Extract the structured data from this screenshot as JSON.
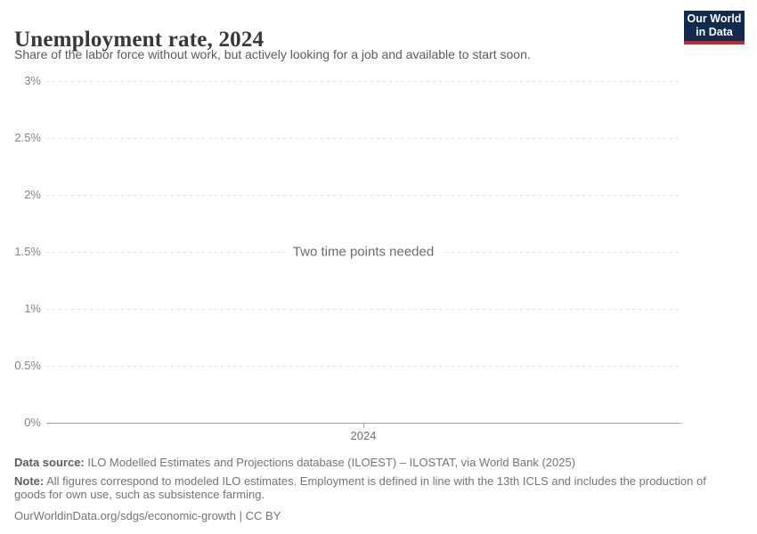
{
  "header": {
    "title": "Unemployment rate, 2024",
    "subtitle": "Share of the labor force without work, but actively looking for a job and available to start soon.",
    "logo": {
      "line1": "Our World",
      "line2": "in Data",
      "bg_color": "#112b4f",
      "accent_color": "#c2282f"
    }
  },
  "chart_data": {
    "type": "line",
    "title": "Unemployment rate, 2024",
    "series": [],
    "x": [],
    "message": "Two time points needed",
    "xticks": [
      "2024"
    ],
    "yticks": [
      "0%",
      "0.5%",
      "1%",
      "1.5%",
      "2%",
      "2.5%",
      "3%"
    ],
    "ylim": [
      0,
      3
    ],
    "xlabel": "",
    "ylabel": "",
    "legend": "none",
    "grid": "horizontal-dashed",
    "grid_color": "#e1e1e1",
    "axis_color": "#a5a5a5"
  },
  "footer": {
    "data_source_label": "Data source:",
    "data_source_text": " ILO Modelled Estimates and Projections database (ILOEST) – ILOSTAT, via World Bank (2025)",
    "note_label": "Note:",
    "note_text": " All figures correspond to modeled ILO estimates. Employment is defined in line with the 13th ICLS and includes the production of goods for own use, such as subsistence farming.",
    "citation_link": "OurWorldinData.org/sdgs/economic-growth",
    "citation_separator": " | ",
    "license": "CC BY"
  }
}
